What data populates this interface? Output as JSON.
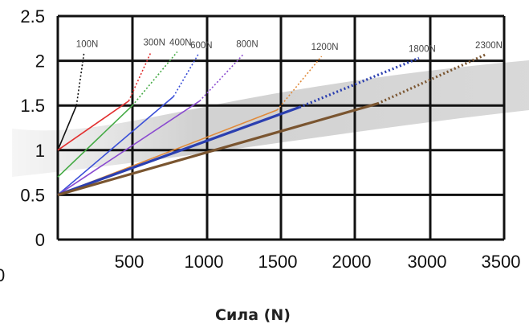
{
  "chart_data": {
    "type": "line",
    "title": "",
    "xlabel": "Сила (N)",
    "ylabel": "",
    "x_ticks": [
      "0",
      "500",
      "1000",
      "1500",
      "2000",
      "3000",
      "3500"
    ],
    "y_ticks": [
      "0",
      "0.5",
      "1",
      "1.5",
      "2",
      "2.5"
    ],
    "ylim": [
      0,
      2.5
    ],
    "grid": true,
    "colors": {
      "axis": "#111111",
      "background_band": "#cfcfcf"
    },
    "series": [
      {
        "name": "100N",
        "color": "#111111",
        "base_y": 1.0,
        "solid_end_x": 0.25,
        "solid_end_y": 1.5,
        "dotted_end_x": 0.35,
        "dotted_end_y": 2.08
      },
      {
        "name": "300N",
        "color": "#e23030",
        "base_y": 1.0,
        "solid_end_x": 0.95,
        "solid_end_y": 1.55,
        "dotted_end_x": 1.25,
        "dotted_end_y": 2.1
      },
      {
        "name": "400N",
        "color": "#44aa44",
        "base_y": 0.7,
        "solid_end_x": 1.0,
        "solid_end_y": 1.5,
        "dotted_end_x": 1.6,
        "dotted_end_y": 2.1
      },
      {
        "name": "600N",
        "color": "#3a4fd8",
        "base_y": 0.5,
        "solid_end_x": 1.55,
        "solid_end_y": 1.6,
        "dotted_end_x": 1.88,
        "dotted_end_y": 2.07
      },
      {
        "name": "800N",
        "color": "#8a4ad0",
        "base_y": 0.5,
        "solid_end_x": 1.9,
        "solid_end_y": 1.55,
        "dotted_end_x": 2.5,
        "dotted_end_y": 2.08
      },
      {
        "name": "1200N",
        "color": "#e08a3a",
        "base_y": 0.5,
        "solid_end_x": 2.95,
        "solid_end_y": 1.45,
        "dotted_end_x": 3.55,
        "dotted_end_y": 2.05
      },
      {
        "name": "1800N",
        "color": "#2b3fb0",
        "base_y": 0.5,
        "solid_end_x": 3.25,
        "solid_end_y": 1.48,
        "dotted_end_x": 4.85,
        "dotted_end_y": 2.03
      },
      {
        "name": "2300N",
        "color": "#7a5530",
        "base_y": 0.5,
        "solid_end_x": 4.3,
        "solid_end_y": 1.52,
        "dotted_end_x": 5.75,
        "dotted_end_y": 2.07
      }
    ]
  }
}
